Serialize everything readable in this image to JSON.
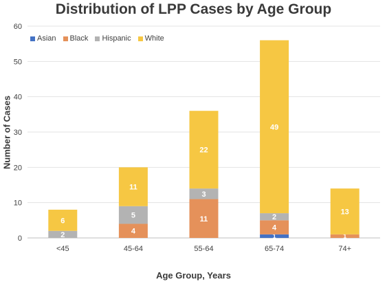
{
  "chart_data": {
    "type": "bar",
    "stacked": true,
    "title": "Distribution of LPP Cases by Age Group",
    "xlabel": "Age Group, Years",
    "ylabel": "Number of Cases",
    "ylim": [
      0,
      60
    ],
    "yticks": [
      "0",
      "10",
      "20",
      "30",
      "40",
      "50",
      "60"
    ],
    "grid": true,
    "legend_position": "top-left",
    "categories": [
      "<45",
      "45-64",
      "55-64",
      "65-74",
      "74+"
    ],
    "series": [
      {
        "name": "Asian",
        "color": "#4472c4",
        "values": [
          0,
          0,
          0,
          1,
          0
        ],
        "labels": [
          "",
          "",
          "",
          "1",
          ""
        ]
      },
      {
        "name": "Black",
        "color": "#e5915a",
        "values": [
          0,
          4,
          11,
          4,
          1
        ],
        "labels": [
          "",
          "4",
          "11",
          "4",
          "1"
        ]
      },
      {
        "name": "Hispanic",
        "color": "#b3b3b3",
        "values": [
          2,
          5,
          3,
          2,
          0
        ],
        "labels": [
          "2",
          "5",
          "3",
          "2",
          ""
        ]
      },
      {
        "name": "White",
        "color": "#f6c743",
        "values": [
          6,
          11,
          22,
          49,
          13
        ],
        "labels": [
          "6",
          "11",
          "22",
          "49",
          "13"
        ]
      }
    ]
  }
}
